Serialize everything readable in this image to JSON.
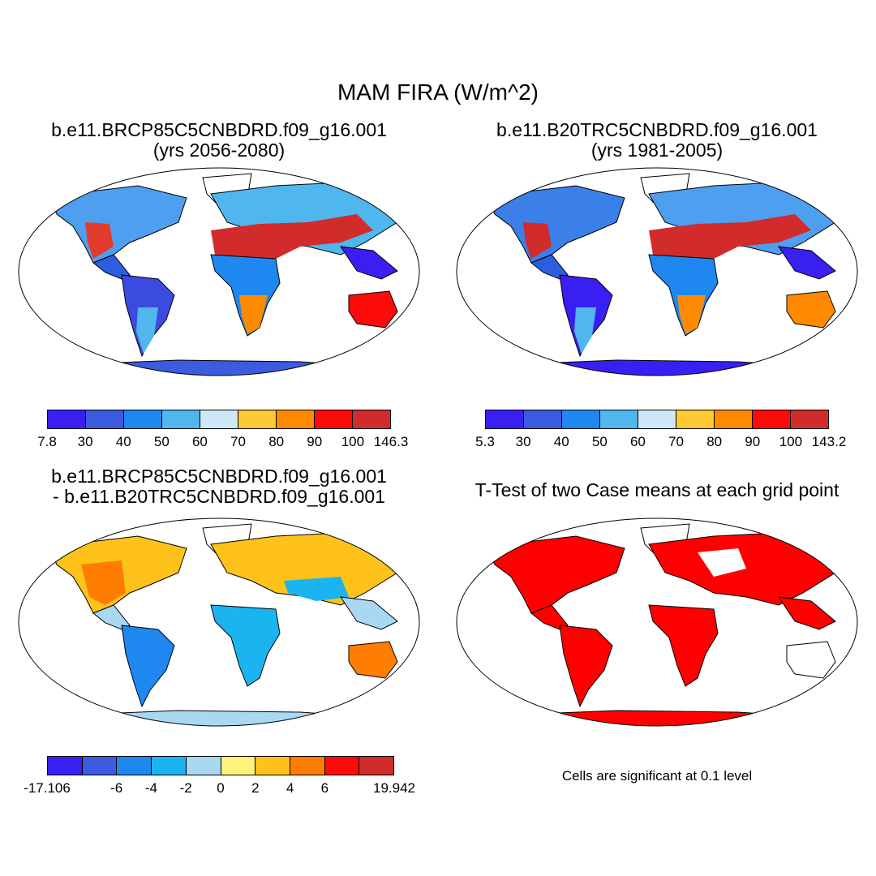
{
  "title": "MAM FIRA (W/m^2)",
  "panels": {
    "future": {
      "title_line1": "b.e11.BRCP85C5CNBDRD.f09_g16.001",
      "title_line2": "(yrs 2056-2080)",
      "colorbar": {
        "colors": [
          "#3a1ff2",
          "#3b5be0",
          "#1e88f0",
          "#4fb6ee",
          "#cfe7f6",
          "#ffc933",
          "#ff8a00",
          "#ff0a0a",
          "#d22b2b"
        ],
        "labels": [
          "7.8",
          "30",
          "40",
          "50",
          "60",
          "70",
          "80",
          "90",
          "100",
          "146.3"
        ]
      }
    },
    "historical": {
      "title_line1": "b.e11.B20TRC5CNBDRD.f09_g16.001",
      "title_line2": "(yrs 1981-2005)",
      "colorbar": {
        "colors": [
          "#3a1ff2",
          "#3b5be0",
          "#1e88f0",
          "#4fb6ee",
          "#cfe7f6",
          "#ffc933",
          "#ff8a00",
          "#ff0a0a",
          "#d22b2b"
        ],
        "labels": [
          "5.3",
          "30",
          "40",
          "50",
          "60",
          "70",
          "80",
          "90",
          "100",
          "143.2"
        ]
      }
    },
    "difference": {
      "title_line1": "b.e11.BRCP85C5CNBDRD.f09_g16.001",
      "title_line2": "- b.e11.B20TRC5CNBDRD.f09_g16.001",
      "colorbar": {
        "colors": [
          "#3a1ff2",
          "#3b5be0",
          "#1e88f0",
          "#1ab4f0",
          "#a9d8f2",
          "#fff27a",
          "#ffc21a",
          "#ff7d00",
          "#ff0a0a",
          "#d22b2b"
        ],
        "labels": [
          "-17.106",
          "",
          "-6",
          "-4",
          "-2",
          "0",
          "2",
          "4",
          "6",
          "",
          "19.942"
        ]
      }
    },
    "ttest": {
      "title": "T-Test of two Case means at each grid point",
      "note": "Cells are significant at 0.1 level",
      "color": "#ff0000"
    }
  }
}
